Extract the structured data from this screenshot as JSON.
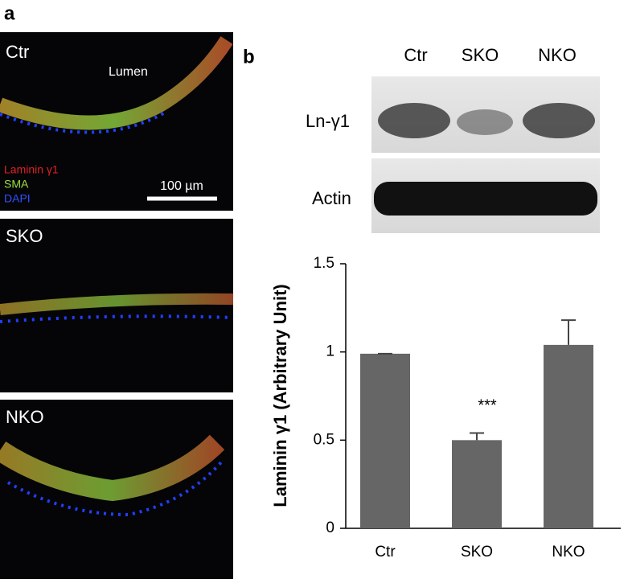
{
  "panel_a": {
    "label": "a",
    "panels": [
      "Ctr",
      "SKO",
      "NKO"
    ],
    "lumen": "Lumen",
    "legend": [
      "Laminin γ1",
      "SMA",
      "DAPI"
    ],
    "scale_bar": "100 µm"
  },
  "panel_b": {
    "label": "b",
    "lanes": [
      "Ctr",
      "SKO",
      "NKO"
    ],
    "rows": [
      "Ln-γ1",
      "Actin"
    ]
  },
  "chart_data": {
    "type": "bar",
    "y_label": "Laminin γ1 (Arbitrary Unit)",
    "categories": [
      "Ctr",
      "SKO",
      "NKO"
    ],
    "values": [
      0.99,
      0.5,
      1.04
    ],
    "errors": [
      0,
      0.04,
      0.14
    ],
    "color": "#666666",
    "ylim": [
      0,
      1.5
    ],
    "yticks": [
      0,
      0.5,
      1,
      1.5
    ],
    "annotation": "***"
  }
}
